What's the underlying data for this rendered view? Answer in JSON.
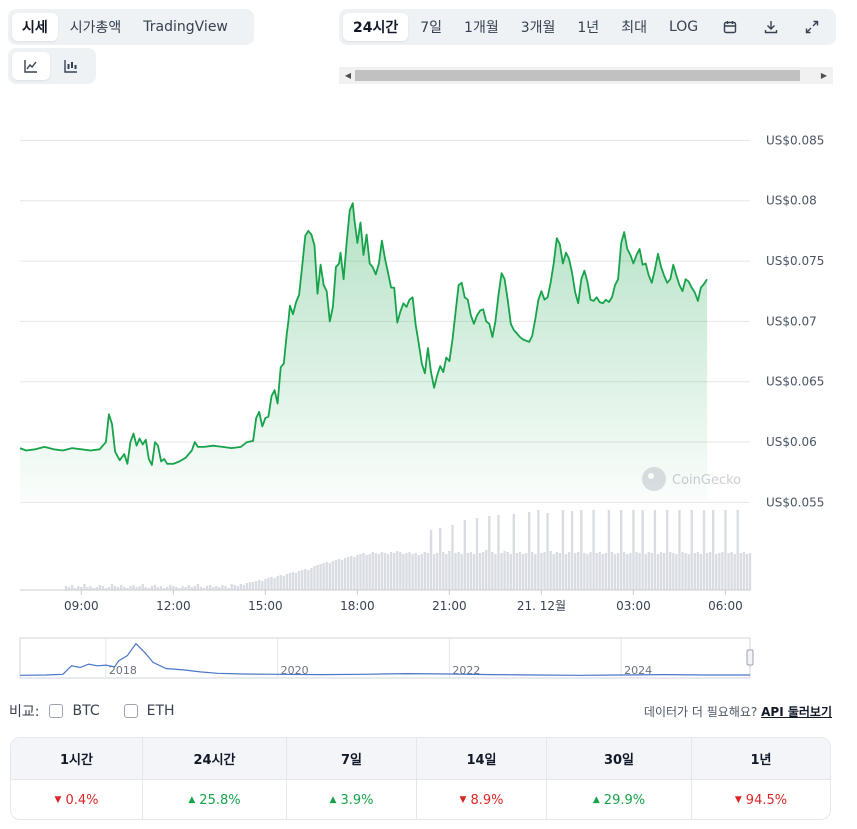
{
  "view_tabs": [
    "시세",
    "시가총액",
    "TradingView"
  ],
  "view_tab_active": 0,
  "chart_type_tabs": [
    {
      "name": "line-chart-icon"
    },
    {
      "name": "candlestick-chart-icon"
    }
  ],
  "range_tabs": [
    "24시간",
    "7일",
    "1개월",
    "3개월",
    "1년",
    "최대",
    "LOG"
  ],
  "range_tab_active": 0,
  "range_icons": [
    "calendar-icon",
    "download-icon",
    "fullscreen-icon"
  ],
  "watermark": "CoinGecko",
  "compare": {
    "label": "비교:",
    "options": [
      "BTC",
      "ETH"
    ]
  },
  "api": {
    "note": "데이터가 더 필요해요?",
    "link": "API 둘러보기"
  },
  "performance": {
    "periods": [
      "1시간",
      "24시간",
      "7일",
      "14일",
      "30일",
      "1년"
    ],
    "changes": [
      {
        "value": "0.4%",
        "direction": "down"
      },
      {
        "value": "25.8%",
        "direction": "up"
      },
      {
        "value": "3.9%",
        "direction": "up"
      },
      {
        "value": "8.9%",
        "direction": "down"
      },
      {
        "value": "29.9%",
        "direction": "up"
      },
      {
        "value": "94.5%",
        "direction": "down"
      }
    ]
  },
  "colors": {
    "line": "#16a34a",
    "fill": "#16a34a",
    "volume": "#d9dde3",
    "navigator_line": "#4a76c8",
    "up": "#16a34a",
    "down": "#dc2626"
  },
  "chart_data": {
    "type": "line",
    "x_unit": "hours since 07:00",
    "price": {
      "ylim": [
        0.0552,
        0.0852
      ],
      "y_ticks": [
        0.055,
        0.06,
        0.065,
        0.07,
        0.075,
        0.08,
        0.085
      ],
      "y_tick_labels": [
        "US$0.055",
        "US$0.06",
        "US$0.065",
        "US$0.07",
        "US$0.075",
        "US$0.08",
        "US$0.085"
      ],
      "x_ticks": [
        2,
        5,
        8,
        11,
        14,
        17,
        20,
        23
      ],
      "x_tick_labels": [
        "09:00",
        "12:00",
        "15:00",
        "18:00",
        "21:00",
        "21. 12월",
        "03:00",
        "06:00"
      ],
      "points": [
        [
          0,
          0.0595
        ],
        [
          0.2,
          0.0593
        ],
        [
          0.5,
          0.0594
        ],
        [
          0.8,
          0.0596
        ],
        [
          1.1,
          0.0594
        ],
        [
          1.4,
          0.0593
        ],
        [
          1.7,
          0.0595
        ],
        [
          2.0,
          0.0594
        ],
        [
          2.3,
          0.0593
        ],
        [
          2.6,
          0.0594
        ],
        [
          2.8,
          0.06
        ],
        [
          2.9,
          0.0623
        ],
        [
          3.0,
          0.0615
        ],
        [
          3.1,
          0.0592
        ],
        [
          3.25,
          0.0585
        ],
        [
          3.4,
          0.059
        ],
        [
          3.5,
          0.0582
        ],
        [
          3.6,
          0.06
        ],
        [
          3.7,
          0.0607
        ],
        [
          3.8,
          0.0597
        ],
        [
          3.9,
          0.0603
        ],
        [
          4.0,
          0.0598
        ],
        [
          4.1,
          0.0602
        ],
        [
          4.2,
          0.0586
        ],
        [
          4.3,
          0.0581
        ],
        [
          4.4,
          0.06
        ],
        [
          4.5,
          0.0597
        ],
        [
          4.6,
          0.0584
        ],
        [
          4.7,
          0.0586
        ],
        [
          4.8,
          0.0582
        ],
        [
          5.0,
          0.0582
        ],
        [
          5.2,
          0.0584
        ],
        [
          5.4,
          0.0587
        ],
        [
          5.6,
          0.0593
        ],
        [
          5.7,
          0.06
        ],
        [
          5.8,
          0.0596
        ],
        [
          6.0,
          0.0596
        ],
        [
          6.3,
          0.0597
        ],
        [
          6.6,
          0.0596
        ],
        [
          6.9,
          0.0595
        ],
        [
          7.2,
          0.0596
        ],
        [
          7.4,
          0.06
        ],
        [
          7.6,
          0.0601
        ],
        [
          7.7,
          0.062
        ],
        [
          7.8,
          0.0625
        ],
        [
          7.9,
          0.0613
        ],
        [
          8.0,
          0.062
        ],
        [
          8.1,
          0.0621
        ],
        [
          8.2,
          0.0638
        ],
        [
          8.3,
          0.0643
        ],
        [
          8.4,
          0.0632
        ],
        [
          8.5,
          0.0662
        ],
        [
          8.6,
          0.0665
        ],
        [
          8.7,
          0.069
        ],
        [
          8.75,
          0.07
        ],
        [
          8.8,
          0.0713
        ],
        [
          8.9,
          0.0706
        ],
        [
          9.0,
          0.0716
        ],
        [
          9.1,
          0.0722
        ],
        [
          9.2,
          0.0746
        ],
        [
          9.3,
          0.0771
        ],
        [
          9.4,
          0.0775
        ],
        [
          9.5,
          0.0772
        ],
        [
          9.6,
          0.0763
        ],
        [
          9.7,
          0.0723
        ],
        [
          9.8,
          0.0747
        ],
        [
          9.9,
          0.073
        ],
        [
          10.0,
          0.0725
        ],
        [
          10.1,
          0.07
        ],
        [
          10.2,
          0.0712
        ],
        [
          10.3,
          0.0745
        ],
        [
          10.4,
          0.0748
        ],
        [
          10.45,
          0.0757
        ],
        [
          10.55,
          0.0735
        ],
        [
          10.65,
          0.0766
        ],
        [
          10.75,
          0.0792
        ],
        [
          10.85,
          0.0798
        ],
        [
          10.9,
          0.0785
        ],
        [
          11.0,
          0.0765
        ],
        [
          11.1,
          0.0782
        ],
        [
          11.2,
          0.0755
        ],
        [
          11.3,
          0.0772
        ],
        [
          11.4,
          0.0748
        ],
        [
          11.5,
          0.0745
        ],
        [
          11.6,
          0.0739
        ],
        [
          11.7,
          0.0748
        ],
        [
          11.8,
          0.0767
        ],
        [
          11.9,
          0.0752
        ],
        [
          12.0,
          0.074
        ],
        [
          12.1,
          0.0728
        ],
        [
          12.2,
          0.0728
        ],
        [
          12.3,
          0.0699
        ],
        [
          12.4,
          0.0708
        ],
        [
          12.5,
          0.0715
        ],
        [
          12.6,
          0.0712
        ],
        [
          12.7,
          0.0718
        ],
        [
          12.8,
          0.072
        ],
        [
          12.9,
          0.0697
        ],
        [
          13.0,
          0.0682
        ],
        [
          13.1,
          0.0665
        ],
        [
          13.2,
          0.0657
        ],
        [
          13.3,
          0.0678
        ],
        [
          13.4,
          0.0658
        ],
        [
          13.5,
          0.0645
        ],
        [
          13.6,
          0.0655
        ],
        [
          13.7,
          0.0663
        ],
        [
          13.8,
          0.0658
        ],
        [
          13.9,
          0.067
        ],
        [
          14.0,
          0.0667
        ],
        [
          14.1,
          0.0685
        ],
        [
          14.3,
          0.073
        ],
        [
          14.4,
          0.0732
        ],
        [
          14.5,
          0.072
        ],
        [
          14.6,
          0.0718
        ],
        [
          14.7,
          0.0705
        ],
        [
          14.8,
          0.0698
        ],
        [
          14.9,
          0.0705
        ],
        [
          15.0,
          0.0709
        ],
        [
          15.1,
          0.071
        ],
        [
          15.2,
          0.07
        ],
        [
          15.3,
          0.0698
        ],
        [
          15.4,
          0.0687
        ],
        [
          15.5,
          0.07
        ],
        [
          15.6,
          0.0722
        ],
        [
          15.7,
          0.074
        ],
        [
          15.8,
          0.0735
        ],
        [
          15.9,
          0.0718
        ],
        [
          16.0,
          0.0698
        ],
        [
          16.1,
          0.0693
        ],
        [
          16.2,
          0.069
        ],
        [
          16.3,
          0.0687
        ],
        [
          16.4,
          0.0685
        ],
        [
          16.5,
          0.0684
        ],
        [
          16.6,
          0.0683
        ],
        [
          16.7,
          0.0688
        ],
        [
          16.8,
          0.0702
        ],
        [
          16.9,
          0.0718
        ],
        [
          17.0,
          0.0725
        ],
        [
          17.1,
          0.0718
        ],
        [
          17.2,
          0.072
        ],
        [
          17.3,
          0.0732
        ],
        [
          17.4,
          0.0748
        ],
        [
          17.5,
          0.0769
        ],
        [
          17.6,
          0.0764
        ],
        [
          17.7,
          0.0748
        ],
        [
          17.8,
          0.0757
        ],
        [
          17.9,
          0.0752
        ],
        [
          18.0,
          0.074
        ],
        [
          18.1,
          0.0724
        ],
        [
          18.2,
          0.0715
        ],
        [
          18.3,
          0.0735
        ],
        [
          18.4,
          0.0742
        ],
        [
          18.5,
          0.0733
        ],
        [
          18.6,
          0.0718
        ],
        [
          18.7,
          0.0717
        ],
        [
          18.8,
          0.072
        ],
        [
          18.9,
          0.0716
        ],
        [
          19.0,
          0.0715
        ],
        [
          19.1,
          0.0718
        ],
        [
          19.2,
          0.0716
        ],
        [
          19.3,
          0.072
        ],
        [
          19.4,
          0.073
        ],
        [
          19.5,
          0.0735
        ],
        [
          19.6,
          0.0765
        ],
        [
          19.7,
          0.0774
        ],
        [
          19.8,
          0.076
        ],
        [
          19.9,
          0.0755
        ],
        [
          20.0,
          0.0748
        ],
        [
          20.1,
          0.0755
        ],
        [
          20.2,
          0.076
        ],
        [
          20.3,
          0.0747
        ],
        [
          20.4,
          0.0748
        ],
        [
          20.5,
          0.0738
        ],
        [
          20.6,
          0.0732
        ],
        [
          20.7,
          0.0743
        ],
        [
          20.8,
          0.0756
        ],
        [
          20.9,
          0.0745
        ],
        [
          21.0,
          0.0738
        ],
        [
          21.1,
          0.0732
        ],
        [
          21.2,
          0.0735
        ],
        [
          21.3,
          0.0747
        ],
        [
          21.4,
          0.0738
        ],
        [
          21.5,
          0.073
        ],
        [
          21.6,
          0.0725
        ],
        [
          21.7,
          0.0735
        ],
        [
          21.8,
          0.0733
        ],
        [
          21.9,
          0.0728
        ],
        [
          22.0,
          0.0724
        ],
        [
          22.1,
          0.0717
        ],
        [
          22.2,
          0.0728
        ],
        [
          22.3,
          0.0731
        ],
        [
          22.4,
          0.0735
        ]
      ]
    },
    "volume": {
      "start_hour": 1.5,
      "step_hours": 0.1,
      "values": [
        4,
        3,
        5,
        2,
        4,
        3,
        6,
        3,
        4,
        2,
        3,
        5,
        4,
        2,
        3,
        6,
        4,
        3,
        5,
        3,
        2,
        4,
        5,
        3,
        4,
        6,
        3,
        2,
        4,
        5,
        3,
        4,
        2,
        3,
        5,
        4,
        3,
        2,
        4,
        3,
        5,
        3,
        4,
        6,
        3,
        2,
        4,
        5,
        3,
        4,
        3,
        5,
        4,
        2,
        6,
        5,
        4,
        6,
        5,
        7,
        8,
        8,
        9,
        10,
        9,
        11,
        12,
        13,
        12,
        14,
        15,
        14,
        16,
        17,
        18,
        17,
        19,
        20,
        21,
        20,
        22,
        24,
        25,
        26,
        27,
        28,
        27,
        29,
        30,
        31,
        30,
        32,
        33,
        34,
        33,
        35,
        36,
        37,
        35,
        36,
        38,
        37,
        36,
        38,
        37,
        36,
        38,
        37,
        39,
        38,
        36,
        37,
        38,
        36,
        37,
        35,
        36,
        38,
        37,
        60,
        36,
        37,
        62,
        38,
        36,
        39,
        65,
        37,
        38,
        36,
        70,
        37,
        38,
        36,
        72,
        37,
        38,
        40,
        74,
        38,
        36,
        75,
        37,
        39,
        38,
        36,
        76,
        37,
        38,
        36,
        37,
        78,
        38,
        36,
        80,
        37,
        38,
        77,
        39,
        36,
        38,
        37,
        80,
        36,
        38,
        79,
        37,
        38,
        80,
        37,
        36,
        38,
        80,
        37,
        38,
        36,
        37,
        80,
        38,
        36,
        37,
        80,
        38,
        36,
        37,
        80,
        38,
        37,
        80,
        36,
        38,
        37,
        80,
        36,
        38,
        37,
        80,
        38,
        37,
        36,
        80,
        38,
        37,
        36,
        80,
        37,
        38,
        36,
        80,
        37,
        38,
        80,
        36,
        37,
        38,
        80,
        37,
        38,
        36,
        80,
        37,
        38,
        36,
        37,
        80,
        38,
        37,
        36
      ]
    },
    "navigator": {
      "x_range": [
        2017.0,
        2025.5
      ],
      "x_ticks": [
        2018,
        2020,
        2022,
        2024
      ],
      "x_tick_labels": [
        "2018",
        "2020",
        "2022",
        "2024"
      ],
      "points": [
        [
          2017.0,
          0.02
        ],
        [
          2017.3,
          0.03
        ],
        [
          2017.5,
          0.05
        ],
        [
          2017.6,
          0.3
        ],
        [
          2017.7,
          0.25
        ],
        [
          2017.8,
          0.35
        ],
        [
          2017.9,
          0.3
        ],
        [
          2018.0,
          0.32
        ],
        [
          2018.1,
          0.27
        ],
        [
          2018.15,
          0.45
        ],
        [
          2018.25,
          0.6
        ],
        [
          2018.35,
          0.95
        ],
        [
          2018.45,
          0.7
        ],
        [
          2018.55,
          0.4
        ],
        [
          2018.7,
          0.22
        ],
        [
          2018.9,
          0.18
        ],
        [
          2019.1,
          0.12
        ],
        [
          2019.3,
          0.08
        ],
        [
          2019.6,
          0.06
        ],
        [
          2020.0,
          0.05
        ],
        [
          2020.5,
          0.04
        ],
        [
          2021.0,
          0.05
        ],
        [
          2021.5,
          0.07
        ],
        [
          2022.0,
          0.06
        ],
        [
          2022.5,
          0.04
        ],
        [
          2023.0,
          0.03
        ],
        [
          2023.5,
          0.02
        ],
        [
          2024.0,
          0.03
        ],
        [
          2024.5,
          0.04
        ],
        [
          2025.0,
          0.03
        ],
        [
          2025.5,
          0.03
        ]
      ]
    }
  }
}
